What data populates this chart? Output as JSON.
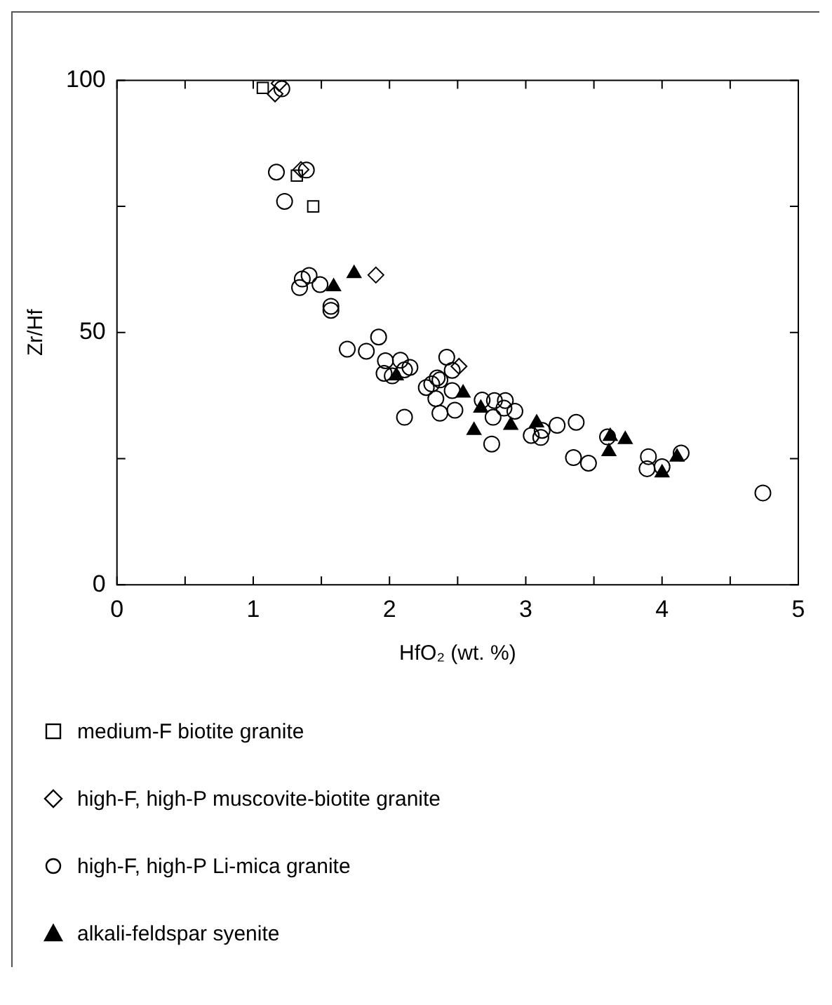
{
  "chart_data": {
    "type": "scatter",
    "xlabel": "HfO₂ (wt. %)",
    "ylabel": "Zr/Hf",
    "xlim": [
      0,
      5
    ],
    "ylim": [
      0,
      100
    ],
    "xticks": [
      0,
      {
        "value": 0.5,
        "label": null
      },
      1,
      {
        "value": 1.5,
        "label": null
      },
      2,
      {
        "value": 2.5,
        "label": null
      },
      3,
      {
        "value": 3.5,
        "label": null
      },
      4,
      {
        "value": 4.5,
        "label": null
      },
      5
    ],
    "yticks": [
      0,
      {
        "value": 25,
        "label": null
      },
      50,
      {
        "value": 75,
        "label": null
      },
      100
    ],
    "grid": false,
    "legend": "bottom",
    "series": [
      {
        "name": "medium-F biotite granite",
        "color": "#000000",
        "marker": "square",
        "x": [
          1.07,
          1.32,
          1.44
        ],
        "values": [
          98.5,
          81.1,
          75.0
        ]
      },
      {
        "name": "high-F, high-P muscovite-biotite granite",
        "color": "#000000",
        "marker": "diamond",
        "x": [
          1.19,
          1.16,
          1.35,
          1.9,
          2.51
        ],
        "values": [
          99.4,
          97.3,
          82.3,
          61.4,
          43.3
        ]
      },
      {
        "name": "high-F, high-P Li-mica granite",
        "color": "#000000",
        "marker": "circle",
        "x": [
          1.21,
          1.17,
          1.39,
          1.23,
          1.34,
          1.36,
          1.41,
          1.49,
          1.57,
          1.57,
          1.69,
          1.83,
          1.92,
          1.97,
          1.96,
          2.02,
          2.08,
          2.11,
          2.15,
          2.11,
          2.27,
          2.31,
          2.35,
          2.37,
          2.34,
          2.37,
          2.42,
          2.46,
          2.48,
          2.46,
          2.68,
          2.77,
          2.76,
          2.85,
          2.84,
          2.92,
          2.75,
          3.04,
          3.11,
          3.12,
          3.23,
          3.37,
          3.35,
          3.46,
          3.6,
          3.9,
          3.89,
          4.0,
          4.14,
          4.74
        ],
        "values": [
          98.3,
          81.8,
          82.2,
          76.0,
          58.9,
          60.6,
          61.3,
          59.5,
          55.2,
          54.4,
          46.7,
          46.3,
          49.1,
          44.4,
          41.9,
          41.4,
          44.5,
          42.6,
          43.1,
          33.2,
          39.1,
          39.8,
          41.0,
          40.6,
          36.9,
          34.0,
          45.1,
          38.5,
          34.6,
          42.5,
          36.6,
          36.5,
          33.2,
          36.5,
          35.0,
          34.4,
          27.9,
          29.6,
          29.2,
          30.6,
          31.6,
          32.2,
          25.2,
          24.1,
          29.3,
          25.4,
          23.0,
          23.4,
          26.1,
          18.2
        ]
      },
      {
        "name": "alkali-feldspar syenite",
        "color": "#000000",
        "marker": "triangle",
        "x": [
          1.59,
          1.74,
          2.05,
          2.54,
          2.67,
          2.62,
          2.89,
          3.08,
          3.62,
          3.61,
          3.73,
          4.0,
          4.11
        ],
        "values": [
          59.1,
          61.7,
          41.4,
          38.0,
          35.0,
          30.6,
          31.6,
          32.1,
          29.4,
          26.4,
          28.8,
          22.2,
          25.3
        ]
      }
    ]
  }
}
